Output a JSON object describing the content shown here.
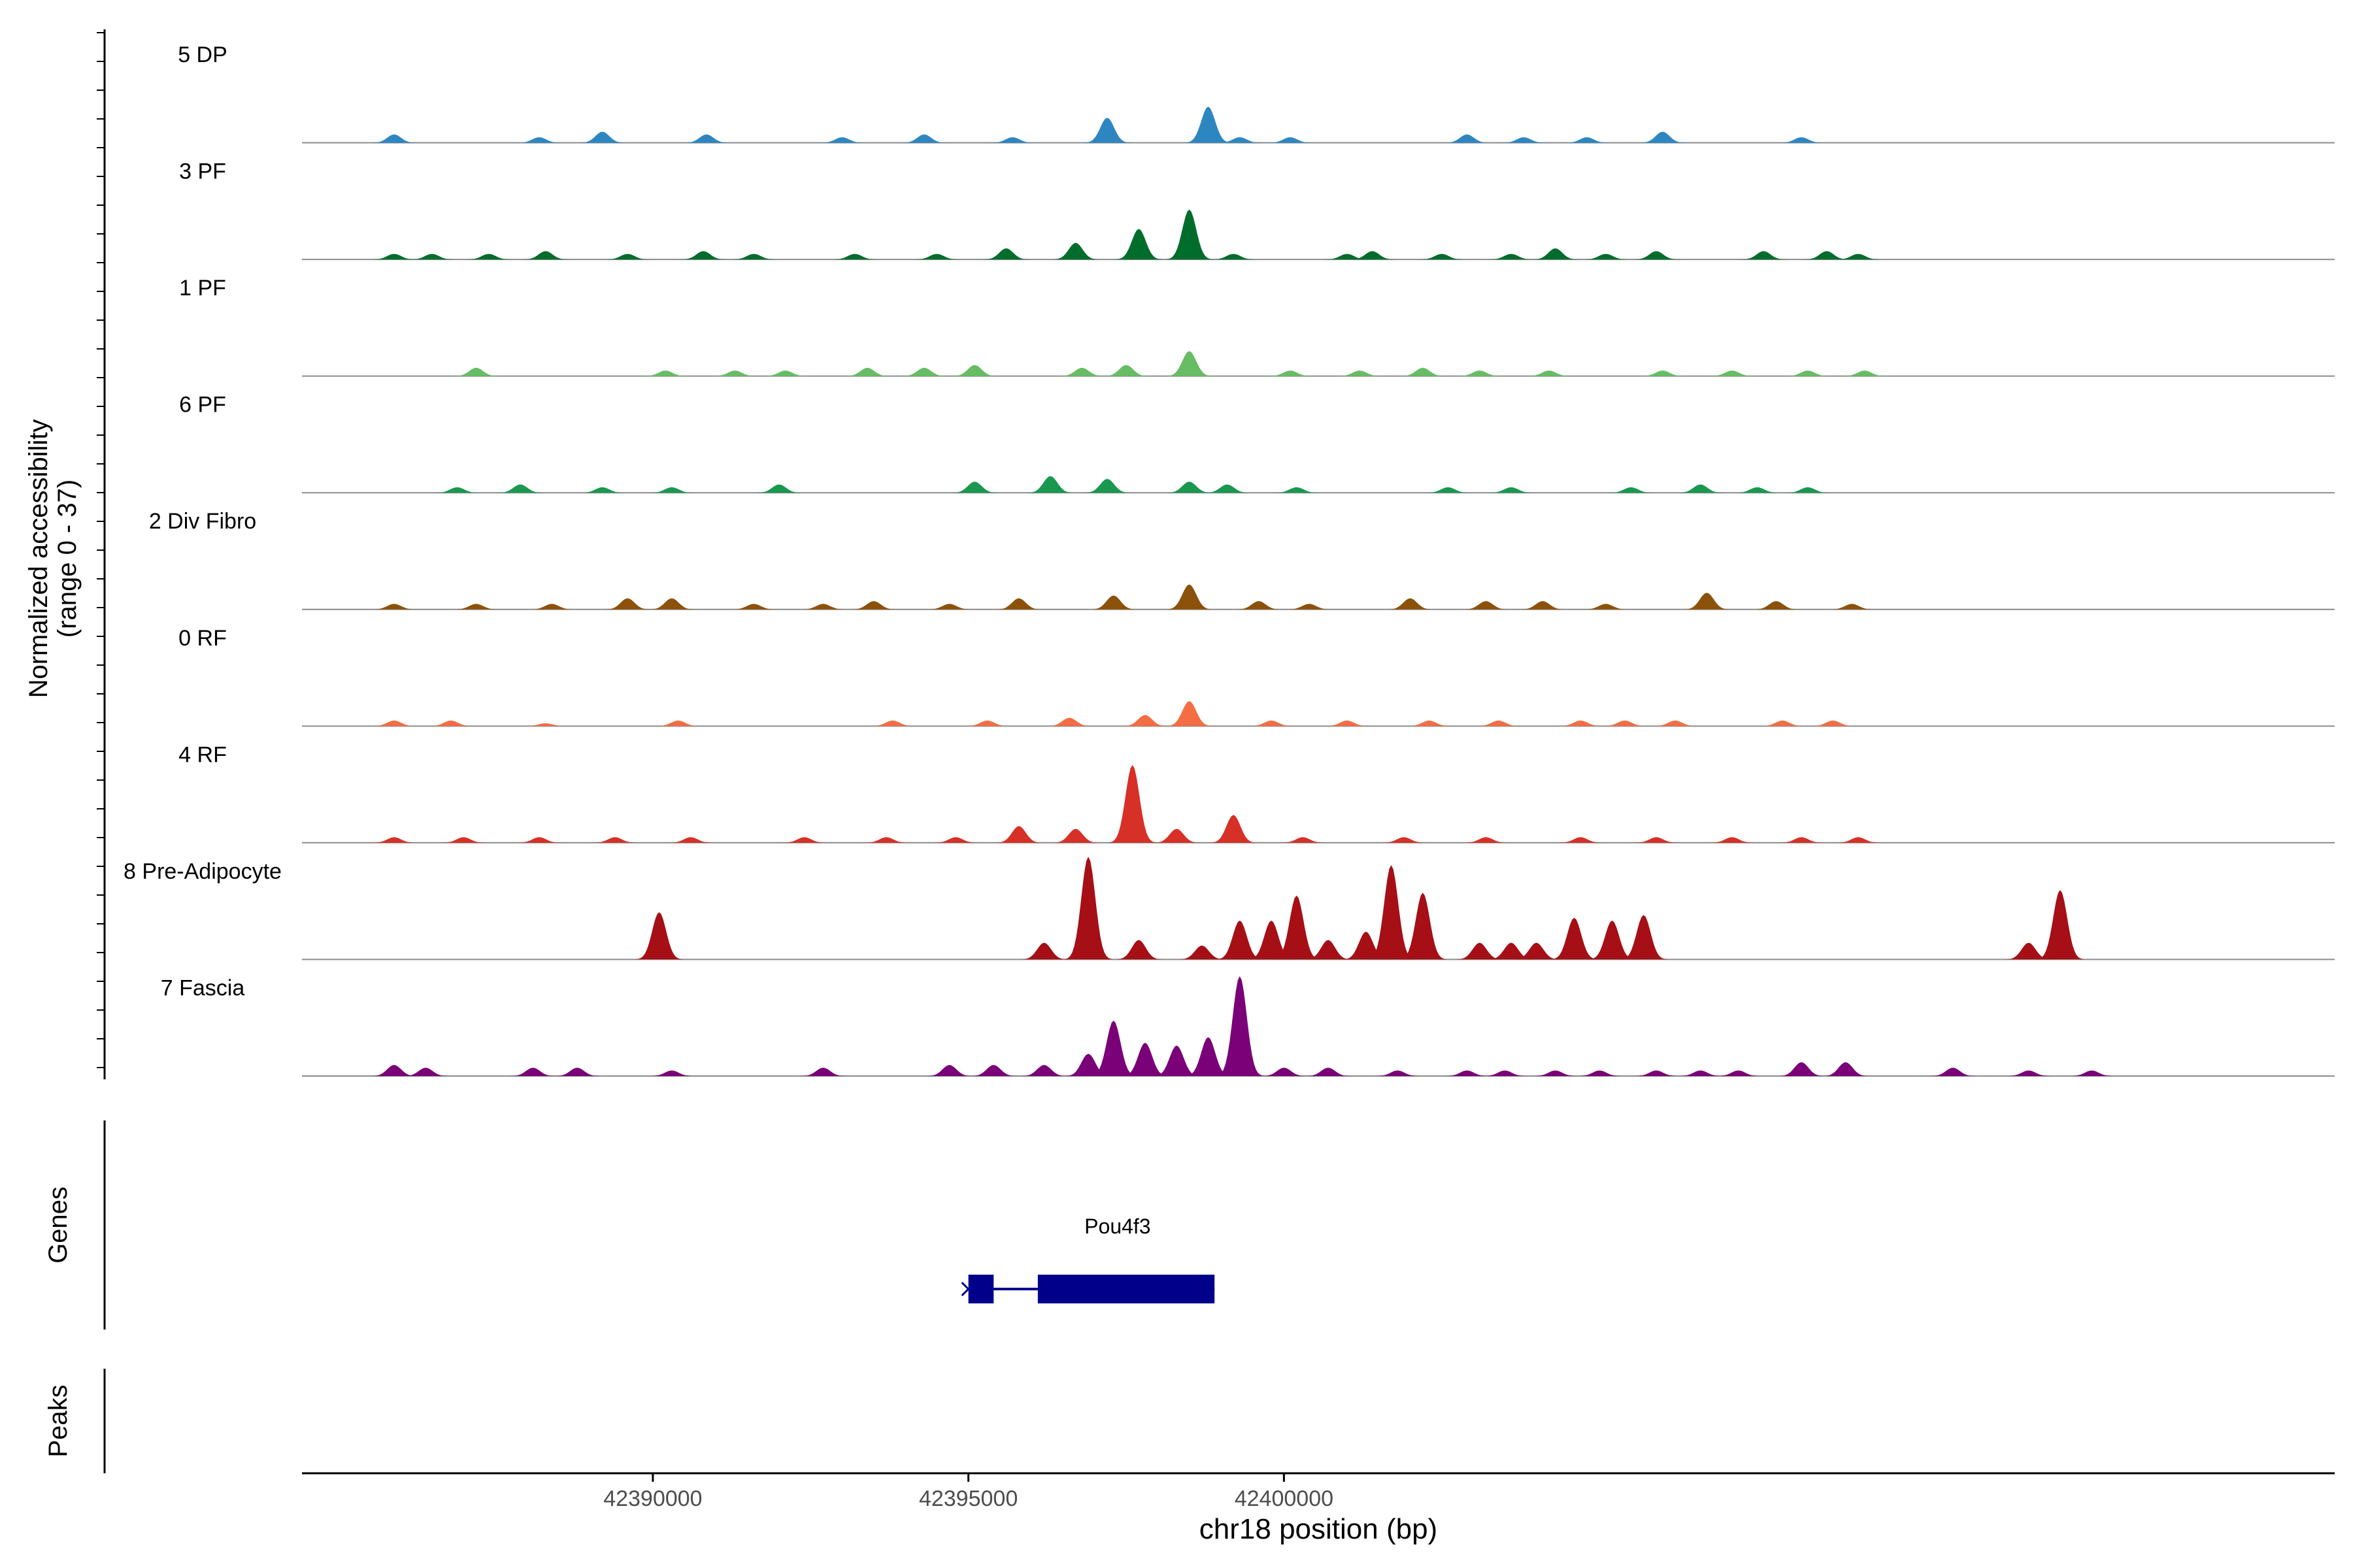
{
  "chart_data": {
    "type": "area",
    "title": "",
    "ylabel_line1": "Normalized accessibility",
    "ylabel_line2": "(range 0 - 37)",
    "xlabel": "chr18 position (bp)",
    "xlim": [
      42384440,
      42416650
    ],
    "ylim": [
      0,
      37
    ],
    "x_ticks": [
      42390000,
      42395000,
      42400000
    ],
    "x_tick_labels": [
      "42390000",
      "42395000",
      "42400000"
    ],
    "genes_label": "Genes",
    "peaks_label": "Peaks",
    "gene": {
      "name": "Pou4f3",
      "color": "#00008b",
      "start": 42395000,
      "end": 42398900,
      "exons": [
        [
          42395000,
          42395400
        ],
        [
          42396100,
          42398900
        ]
      ],
      "strand": "+"
    },
    "series": [
      {
        "name": "5 DP",
        "color": "#2e86c1",
        "peaks": [
          [
            42385900,
            3
          ],
          [
            42388200,
            2
          ],
          [
            42389200,
            4
          ],
          [
            42390850,
            3
          ],
          [
            42393000,
            2
          ],
          [
            42394300,
            3
          ],
          [
            42395700,
            2
          ],
          [
            42397200,
            9
          ],
          [
            42398800,
            13
          ],
          [
            42399300,
            2
          ],
          [
            42400100,
            2
          ],
          [
            42402900,
            3
          ],
          [
            42403800,
            2
          ],
          [
            42404800,
            2
          ],
          [
            42406000,
            4
          ],
          [
            42408200,
            2
          ]
        ]
      },
      {
        "name": "3 PF",
        "color": "#006d2c",
        "peaks": [
          [
            42385900,
            2
          ],
          [
            42386500,
            2
          ],
          [
            42387400,
            2
          ],
          [
            42388300,
            3
          ],
          [
            42389600,
            2
          ],
          [
            42390800,
            3
          ],
          [
            42391600,
            2
          ],
          [
            42393200,
            2
          ],
          [
            42394500,
            2
          ],
          [
            42395600,
            4
          ],
          [
            42396700,
            6
          ],
          [
            42397700,
            11
          ],
          [
            42398500,
            18
          ],
          [
            42399200,
            2
          ],
          [
            42401000,
            2
          ],
          [
            42401400,
            3
          ],
          [
            42402500,
            2
          ],
          [
            42403600,
            2
          ],
          [
            42404300,
            4
          ],
          [
            42405100,
            2
          ],
          [
            42405900,
            3
          ],
          [
            42407600,
            3
          ],
          [
            42408600,
            3
          ],
          [
            42409100,
            2
          ]
        ]
      },
      {
        "name": "1 PF",
        "color": "#66bd63",
        "peaks": [
          [
            42387200,
            3
          ],
          [
            42390200,
            2
          ],
          [
            42391300,
            2
          ],
          [
            42392100,
            2
          ],
          [
            42393400,
            3
          ],
          [
            42394300,
            3
          ],
          [
            42395100,
            4
          ],
          [
            42396800,
            3
          ],
          [
            42397500,
            4
          ],
          [
            42398500,
            9
          ],
          [
            42400100,
            2
          ],
          [
            42401200,
            2
          ],
          [
            42402200,
            3
          ],
          [
            42403100,
            2
          ],
          [
            42404200,
            2
          ],
          [
            42406000,
            2
          ],
          [
            42407100,
            2
          ],
          [
            42408300,
            2
          ],
          [
            42409200,
            2
          ]
        ]
      },
      {
        "name": "6 PF",
        "color": "#1a9850",
        "peaks": [
          [
            42386900,
            2
          ],
          [
            42387900,
            3
          ],
          [
            42389200,
            2
          ],
          [
            42390300,
            2
          ],
          [
            42392000,
            3
          ],
          [
            42395100,
            4
          ],
          [
            42396300,
            6
          ],
          [
            42397200,
            5
          ],
          [
            42398500,
            4
          ],
          [
            42399100,
            3
          ],
          [
            42400200,
            2
          ],
          [
            42402600,
            2
          ],
          [
            42403600,
            2
          ],
          [
            42405500,
            2
          ],
          [
            42406600,
            3
          ],
          [
            42407500,
            2
          ],
          [
            42408300,
            2
          ]
        ]
      },
      {
        "name": "2 Div Fibro",
        "color": "#8c510a",
        "peaks": [
          [
            42385900,
            2
          ],
          [
            42387200,
            2
          ],
          [
            42388400,
            2
          ],
          [
            42389600,
            4
          ],
          [
            42390300,
            4
          ],
          [
            42391600,
            2
          ],
          [
            42392700,
            2
          ],
          [
            42393500,
            3
          ],
          [
            42394700,
            2
          ],
          [
            42395800,
            4
          ],
          [
            42397300,
            5
          ],
          [
            42398500,
            9
          ],
          [
            42399600,
            3
          ],
          [
            42400400,
            2
          ],
          [
            42402000,
            4
          ],
          [
            42403200,
            3
          ],
          [
            42404100,
            3
          ],
          [
            42405100,
            2
          ],
          [
            42406700,
            6
          ],
          [
            42407800,
            3
          ],
          [
            42409000,
            2
          ]
        ]
      },
      {
        "name": "0 RF",
        "color": "#f46d43",
        "peaks": [
          [
            42385900,
            2
          ],
          [
            42386800,
            2
          ],
          [
            42388300,
            1
          ],
          [
            42390400,
            2
          ],
          [
            42393800,
            2
          ],
          [
            42395300,
            2
          ],
          [
            42396600,
            3
          ],
          [
            42397800,
            4
          ],
          [
            42398500,
            9
          ],
          [
            42399800,
            2
          ],
          [
            42401000,
            2
          ],
          [
            42402300,
            2
          ],
          [
            42403400,
            2
          ],
          [
            42404700,
            2
          ],
          [
            42405400,
            2
          ],
          [
            42406200,
            2
          ],
          [
            42407900,
            2
          ],
          [
            42408700,
            2
          ]
        ]
      },
      {
        "name": "4 RF",
        "color": "#d73027",
        "peaks": [
          [
            42385900,
            2
          ],
          [
            42387000,
            2
          ],
          [
            42388200,
            2
          ],
          [
            42389400,
            2
          ],
          [
            42390600,
            2
          ],
          [
            42392400,
            2
          ],
          [
            42393700,
            2
          ],
          [
            42394800,
            2
          ],
          [
            42395800,
            6
          ],
          [
            42396700,
            5
          ],
          [
            42397600,
            28
          ],
          [
            42398300,
            5
          ],
          [
            42399200,
            10
          ],
          [
            42400300,
            2
          ],
          [
            42401900,
            2
          ],
          [
            42403200,
            2
          ],
          [
            42404700,
            2
          ],
          [
            42405900,
            2
          ],
          [
            42407100,
            2
          ],
          [
            42408200,
            2
          ],
          [
            42409100,
            2
          ]
        ]
      },
      {
        "name": "8 Pre-Adipocyte",
        "color": "#a50f15",
        "peaks": [
          [
            42390100,
            17
          ],
          [
            42396200,
            6
          ],
          [
            42396900,
            37
          ],
          [
            42397700,
            7
          ],
          [
            42398700,
            5
          ],
          [
            42399300,
            14
          ],
          [
            42399800,
            14
          ],
          [
            42400200,
            23
          ],
          [
            42400700,
            7
          ],
          [
            42401300,
            10
          ],
          [
            42401700,
            34
          ],
          [
            42402200,
            24
          ],
          [
            42403100,
            6
          ],
          [
            42403600,
            6
          ],
          [
            42404000,
            6
          ],
          [
            42404600,
            15
          ],
          [
            42405200,
            14
          ],
          [
            42405700,
            16
          ],
          [
            42411800,
            6
          ],
          [
            42412300,
            25
          ]
        ]
      },
      {
        "name": "7 Fascia",
        "color": "#7a0177",
        "peaks": [
          [
            42385900,
            4
          ],
          [
            42386400,
            3
          ],
          [
            42388100,
            3
          ],
          [
            42388800,
            3
          ],
          [
            42390300,
            2
          ],
          [
            42392700,
            3
          ],
          [
            42394700,
            4
          ],
          [
            42395400,
            4
          ],
          [
            42396200,
            4
          ],
          [
            42396900,
            8
          ],
          [
            42397300,
            20
          ],
          [
            42397800,
            12
          ],
          [
            42398300,
            11
          ],
          [
            42398800,
            14
          ],
          [
            42399300,
            36
          ],
          [
            42400000,
            3
          ],
          [
            42400700,
            3
          ],
          [
            42401800,
            2
          ],
          [
            42402900,
            2
          ],
          [
            42403500,
            2
          ],
          [
            42404300,
            2
          ],
          [
            42405000,
            2
          ],
          [
            42405900,
            2
          ],
          [
            42406600,
            2
          ],
          [
            42407200,
            2
          ],
          [
            42408200,
            5
          ],
          [
            42408900,
            5
          ],
          [
            42410600,
            3
          ],
          [
            42411800,
            2
          ],
          [
            42412800,
            2
          ]
        ]
      }
    ]
  }
}
